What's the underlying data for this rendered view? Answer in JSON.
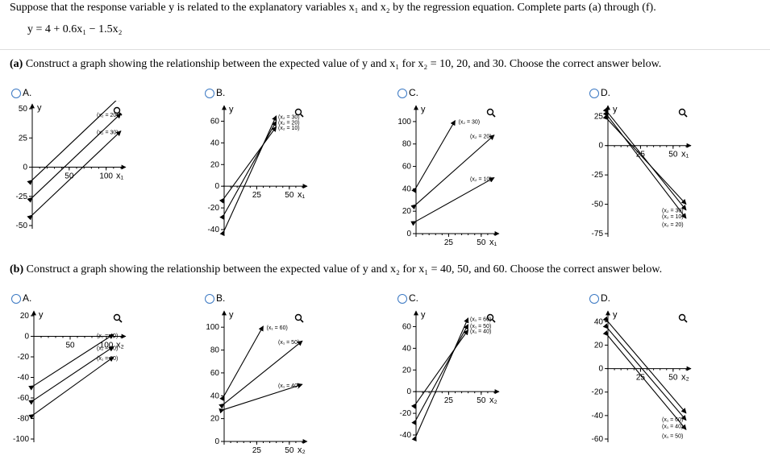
{
  "intro": "Suppose that the response variable y is related to the explanatory variables x₁ and x₂ by the regression equation. Complete parts (a) through (f).",
  "equation": "y = 4 + 0.6x₁ − 1.5x₂",
  "part_a": {
    "label": "(a)",
    "text": "Construct a graph showing the relationship between the expected value of y and x₁ for x₂ = 10, 20, and 30. Choose the correct answer below.",
    "options": [
      "A.",
      "B.",
      "C.",
      "D."
    ]
  },
  "part_b": {
    "label": "(b)",
    "text": "Construct a graph showing the relationship between the expected value of y and x₂ for x₁ = 40, 50, and 60. Choose the correct answer below.",
    "options": [
      "A.",
      "B.",
      "C.",
      "D."
    ]
  },
  "chart_data": [
    {
      "id": "a-A",
      "type": "line",
      "xlabel": "x₁",
      "ylabel": "y",
      "xticks": [
        "50",
        "100"
      ],
      "yticks": [
        "50",
        "25",
        "0",
        "-25",
        "-50"
      ],
      "xlim": [
        0,
        120
      ],
      "ylim": [
        -50,
        50
      ],
      "series": [
        {
          "name": "(x₂ = 10)",
          "x": [
            0,
            120
          ],
          "y": [
            -11,
            61
          ]
        },
        {
          "name": "(x₂ = 20)",
          "x": [
            0,
            120
          ],
          "y": [
            -26,
            46
          ]
        },
        {
          "name": "(x₂ = 30)",
          "x": [
            0,
            120
          ],
          "y": [
            -41,
            31
          ]
        }
      ]
    },
    {
      "id": "a-B",
      "type": "line",
      "xlabel": "x₁",
      "ylabel": "y",
      "xticks": [
        "25",
        "50"
      ],
      "yticks": [
        "60",
        "40",
        "20",
        "0",
        "-20",
        "-40"
      ],
      "xlim": [
        0,
        60
      ],
      "ylim": [
        -40,
        70
      ],
      "series": [
        {
          "name": "(x₂ = 30)",
          "x": [
            0,
            40
          ],
          "y": [
            -41,
            65
          ]
        },
        {
          "name": "(x₂ = 20)",
          "x": [
            0,
            40
          ],
          "y": [
            -26,
            60
          ]
        },
        {
          "name": "(x₂ = 10)",
          "x": [
            0,
            40
          ],
          "y": [
            -11,
            55
          ]
        }
      ]
    },
    {
      "id": "a-C",
      "type": "line",
      "xlabel": "x₁",
      "ylabel": "y",
      "xticks": [
        "25",
        "50"
      ],
      "yticks": [
        "100",
        "80",
        "60",
        "40",
        "20",
        "0"
      ],
      "xlim": [
        0,
        60
      ],
      "ylim": [
        0,
        110
      ],
      "series": [
        {
          "name": "(x₂ = 30)",
          "x": [
            0,
            30
          ],
          "y": [
            41,
            101
          ]
        },
        {
          "name": "(x₂ = 20)",
          "x": [
            0,
            60
          ],
          "y": [
            26,
            88
          ]
        },
        {
          "name": "(x₂ = 10)",
          "x": [
            0,
            60
          ],
          "y": [
            11,
            50
          ]
        }
      ]
    },
    {
      "id": "a-D",
      "type": "line",
      "xlabel": "x₁",
      "ylabel": "y",
      "xticks": [
        "25",
        "50"
      ],
      "yticks": [
        "25",
        "0",
        "-25",
        "-50",
        "-75"
      ],
      "xlim": [
        0,
        60
      ],
      "ylim": [
        -75,
        30
      ],
      "series": [
        {
          "name": "(x₂ = 30)",
          "x": [
            0,
            60
          ],
          "y": [
            22,
            -50
          ]
        },
        {
          "name": "(x₂ = 10)",
          "x": [
            0,
            60
          ],
          "y": [
            28,
            -55
          ]
        },
        {
          "name": "(x₂ = 20)",
          "x": [
            0,
            60
          ],
          "y": [
            25,
            -62
          ]
        }
      ]
    },
    {
      "id": "b-A",
      "type": "line",
      "xlabel": "x₂",
      "ylabel": "y",
      "xticks": [
        "50",
        "100"
      ],
      "yticks": [
        "20",
        "0",
        "-20",
        "-40",
        "-60",
        "-80",
        "-100"
      ],
      "xlim": [
        0,
        120
      ],
      "ylim": [
        -100,
        20
      ],
      "series": [
        {
          "name": "(x₁ = 40)",
          "x": [
            0,
            110
          ],
          "y": [
            -48,
            2
          ]
        },
        {
          "name": "(x₁ = 30)",
          "x": [
            0,
            110
          ],
          "y": [
            -62,
            -10
          ]
        },
        {
          "name": "(x₁ = 60)",
          "x": [
            0,
            110
          ],
          "y": [
            -76,
            -20
          ]
        }
      ]
    },
    {
      "id": "b-B",
      "type": "line",
      "xlabel": "x₂",
      "ylabel": "y",
      "xticks": [
        "25",
        "50"
      ],
      "yticks": [
        "100",
        "80",
        "60",
        "40",
        "20",
        "0"
      ],
      "xlim": [
        0,
        60
      ],
      "ylim": [
        0,
        110
      ],
      "series": [
        {
          "name": "(x₁ = 60)",
          "x": [
            0,
            30
          ],
          "y": [
            40,
            101
          ]
        },
        {
          "name": "(x₁ = 50)",
          "x": [
            0,
            60
          ],
          "y": [
            33,
            88
          ]
        },
        {
          "name": "(x₁ = 40)",
          "x": [
            0,
            60
          ],
          "y": [
            28,
            50
          ]
        }
      ]
    },
    {
      "id": "b-C",
      "type": "line",
      "xlabel": "x₂",
      "ylabel": "y",
      "xticks": [
        "25",
        "50"
      ],
      "yticks": [
        "60",
        "40",
        "20",
        "0",
        "-20",
        "-40"
      ],
      "xlim": [
        0,
        60
      ],
      "ylim": [
        -40,
        70
      ],
      "series": [
        {
          "name": "(x₁ = 60)",
          "x": [
            0,
            40
          ],
          "y": [
            -41,
            68
          ]
        },
        {
          "name": "(x₁ = 50)",
          "x": [
            0,
            40
          ],
          "y": [
            -26,
            62
          ]
        },
        {
          "name": "(x₁ = 40)",
          "x": [
            0,
            40
          ],
          "y": [
            -11,
            57
          ]
        }
      ]
    },
    {
      "id": "b-D",
      "type": "line",
      "xlabel": "x₂",
      "ylabel": "y",
      "xticks": [
        "25",
        "50"
      ],
      "yticks": [
        "40",
        "20",
        "0",
        "-20",
        "-40",
        "-60"
      ],
      "xlim": [
        0,
        60
      ],
      "ylim": [
        -60,
        45
      ],
      "series": [
        {
          "name": "(x₁ = 60)",
          "x": [
            0,
            60
          ],
          "y": [
            40,
            -38
          ]
        },
        {
          "name": "(x₁ = 40)",
          "x": [
            0,
            60
          ],
          "y": [
            34,
            -44
          ]
        },
        {
          "name": "(x₁ = 50)",
          "x": [
            0,
            60
          ],
          "y": [
            28,
            -52
          ]
        }
      ]
    }
  ]
}
